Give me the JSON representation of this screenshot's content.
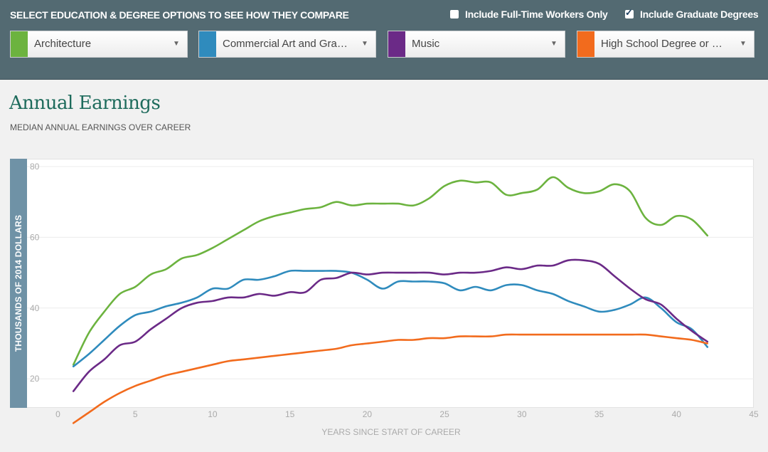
{
  "header": {
    "instructions": "SELECT EDUCATION & DEGREE OPTIONS TO SEE HOW THEY COMPARE",
    "fulltime_label": "Include Full-Time Workers Only",
    "fulltime_checked": false,
    "graduate_label": "Include Graduate Degrees",
    "graduate_checked": true
  },
  "selects": [
    {
      "label": "Architecture",
      "color": "#6cb33f"
    },
    {
      "label": "Commercial Art and Gra…",
      "color": "#2f8bbd"
    },
    {
      "label": "Music",
      "color": "#6b2a87"
    },
    {
      "label": "High School Degree or …",
      "color": "#f26b1d"
    }
  ],
  "chart": {
    "title": "Annual Earnings",
    "subtitle": "MEDIAN ANNUAL EARNINGS OVER CAREER"
  },
  "chart_data": {
    "type": "line",
    "title": "Annual Earnings",
    "subtitle": "MEDIAN ANNUAL EARNINGS OVER CAREER",
    "xlabel": "YEARS SINCE START OF CAREER",
    "ylabel": "THOUSANDS OF 2014 DOLLARS",
    "xlim": [
      -2,
      45
    ],
    "ylim": [
      12,
      82
    ],
    "xticks": [
      0,
      5,
      10,
      15,
      20,
      25,
      30,
      35,
      40,
      45
    ],
    "yticks": [
      20,
      40,
      60,
      80
    ],
    "grid": true,
    "x": [
      1,
      2,
      3,
      4,
      5,
      6,
      7,
      8,
      9,
      10,
      11,
      12,
      13,
      14,
      15,
      16,
      17,
      18,
      19,
      20,
      21,
      22,
      23,
      24,
      25,
      26,
      27,
      28,
      29,
      30,
      31,
      32,
      33,
      34,
      35,
      36,
      37,
      38,
      39,
      40,
      41,
      42
    ],
    "series": [
      {
        "color": "#6cb33f",
        "values": [
          24,
          33,
          39,
          44,
          46,
          49.5,
          51,
          54,
          55,
          57,
          59.5,
          62,
          64.5,
          66,
          67,
          68,
          68.5,
          70,
          69,
          69.5,
          69.5,
          69.5,
          69,
          71,
          74.5,
          76,
          75.5,
          75.5,
          72,
          72.5,
          73.5,
          77,
          74,
          72.5,
          73,
          75,
          73,
          65.5,
          63.5,
          66,
          65,
          60.5
        ]
      },
      {
        "color": "#2f8bbd",
        "values": [
          23.5,
          27,
          31,
          35,
          38,
          39,
          40.5,
          41.5,
          43,
          45.5,
          45.5,
          48,
          48,
          49,
          50.5,
          50.5,
          50.5,
          50.5,
          50,
          48,
          45.5,
          47.5,
          47.5,
          47.5,
          47,
          45,
          46,
          45,
          46.5,
          46.5,
          45,
          44,
          42,
          40.5,
          39,
          39.5,
          41,
          43,
          40,
          36,
          34,
          29
        ]
      },
      {
        "color": "#6b2a87",
        "values": [
          16.5,
          22,
          25.5,
          29.5,
          30.5,
          34,
          37,
          40,
          41.5,
          42,
          43,
          43,
          44,
          43.5,
          44.5,
          44.5,
          48,
          48.5,
          50,
          49.5,
          50,
          50,
          50,
          50,
          49.5,
          50,
          50,
          50.5,
          51.5,
          51,
          52,
          52,
          53.5,
          53.5,
          52.5,
          49,
          45.5,
          42.5,
          41,
          37,
          33.5,
          30.5
        ]
      },
      {
        "color": "#f26b1d",
        "values": [
          7.5,
          10.5,
          13.5,
          16,
          18,
          19.5,
          21,
          22,
          23,
          24,
          25,
          25.5,
          26,
          26.5,
          27,
          27.5,
          28,
          28.5,
          29.5,
          30,
          30.5,
          31,
          31,
          31.5,
          31.5,
          32,
          32,
          32,
          32.5,
          32.5,
          32.5,
          32.5,
          32.5,
          32.5,
          32.5,
          32.5,
          32.5,
          32.5,
          32,
          31.5,
          31,
          30
        ]
      }
    ]
  }
}
